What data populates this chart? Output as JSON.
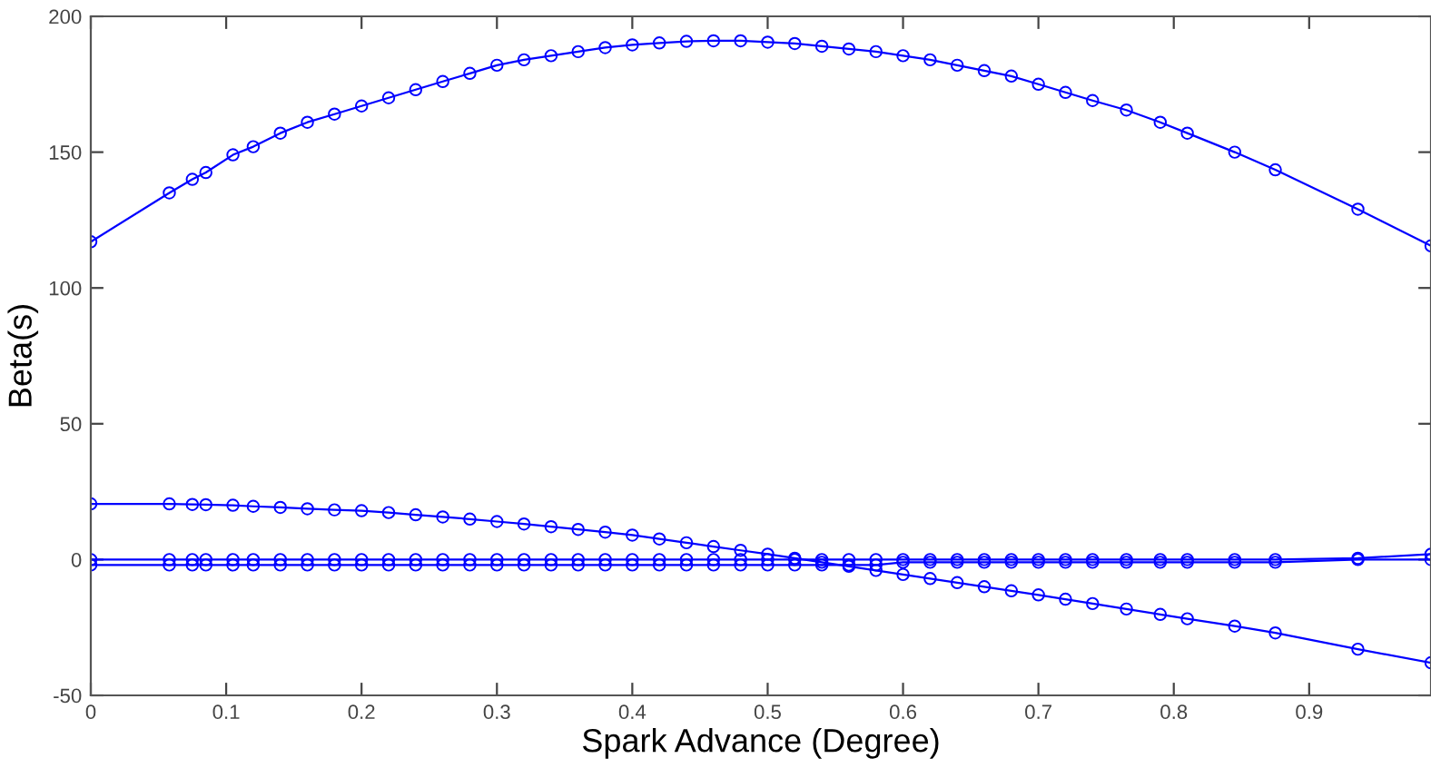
{
  "chart_data": {
    "type": "line",
    "xlabel": "Spark Advance (Degree)",
    "ylabel": "Beta(s)",
    "x": [
      0,
      0.058,
      0.075,
      0.085,
      0.105,
      0.12,
      0.14,
      0.16,
      0.18,
      0.2,
      0.22,
      0.24,
      0.26,
      0.28,
      0.3,
      0.32,
      0.34,
      0.36,
      0.38,
      0.4,
      0.42,
      0.44,
      0.46,
      0.48,
      0.5,
      0.52,
      0.54,
      0.56,
      0.58,
      0.6,
      0.62,
      0.64,
      0.66,
      0.68,
      0.7,
      0.72,
      0.74,
      0.765,
      0.79,
      0.81,
      0.845,
      0.875,
      0.936,
      0.99
    ],
    "series": [
      {
        "color": "#0000ff",
        "values": [
          117,
          135,
          140,
          142.5,
          149,
          152,
          157,
          161,
          164,
          167,
          170,
          173,
          176,
          179,
          182,
          184,
          185.5,
          187,
          188.5,
          189.5,
          190.2,
          190.8,
          191,
          191,
          190.5,
          190,
          189,
          188,
          187,
          185.5,
          184,
          182,
          180,
          178,
          175,
          172,
          169,
          165.5,
          161,
          157,
          150,
          143.5,
          129,
          115.5
        ]
      },
      {
        "color": "#0000ff",
        "values": [
          20.5,
          20.5,
          20.3,
          20.2,
          20,
          19.6,
          19.2,
          18.7,
          18.3,
          18,
          17.3,
          16.5,
          15.7,
          14.9,
          14,
          13.1,
          12.1,
          11.1,
          10.1,
          9,
          7.6,
          6.2,
          4.8,
          3.4,
          2,
          0.5,
          -1,
          -2.5,
          -4,
          -5.5,
          -7,
          -8.5,
          -10,
          -11.5,
          -13,
          -14.6,
          -16.2,
          -18.2,
          -20.2,
          -21.8,
          -24.5,
          -27,
          -33,
          -38
        ]
      },
      {
        "color": "#0000ff",
        "values": [
          0,
          0,
          0,
          0,
          0,
          0,
          0,
          0,
          0,
          0,
          0,
          0,
          0,
          0,
          0,
          0,
          0,
          0,
          0,
          0,
          0,
          0,
          0,
          0,
          0,
          0,
          0,
          0,
          0,
          0,
          0,
          0,
          0,
          0,
          0,
          0,
          0,
          0,
          0,
          0,
          0,
          0,
          0.5,
          2
        ]
      },
      {
        "color": "#0000ff",
        "values": [
          -2,
          -2,
          -2,
          -2,
          -2,
          -2,
          -2,
          -2,
          -2,
          -2,
          -2,
          -2,
          -2,
          -2,
          -2,
          -2,
          -2,
          -2,
          -2,
          -2,
          -2,
          -2,
          -2,
          -2,
          -2,
          -2,
          -2,
          -2,
          -2,
          -1,
          -1,
          -1,
          -1,
          -1,
          -1,
          -1,
          -1,
          -1,
          -1,
          -1,
          -1,
          -1,
          0,
          0
        ]
      }
    ],
    "xlim": [
      0,
      0.99
    ],
    "ylim": [
      -50,
      200
    ],
    "xticks": [
      0,
      0.1,
      0.2,
      0.3,
      0.4,
      0.5,
      0.6,
      0.7,
      0.8,
      0.9
    ],
    "yticks": [
      -50,
      0,
      50,
      100,
      150,
      200
    ],
    "marker": "circle",
    "line_style": "solid",
    "grid": false
  }
}
